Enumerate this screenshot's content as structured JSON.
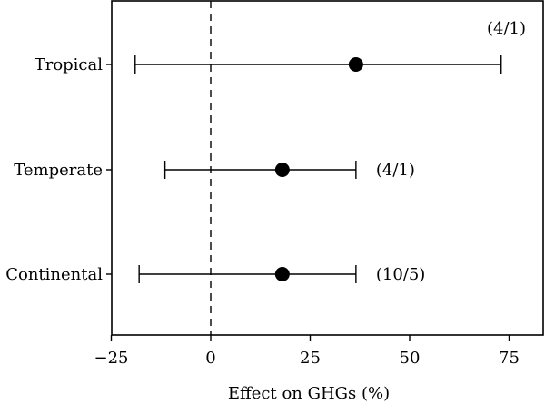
{
  "chart_data": {
    "type": "scatter",
    "subtype": "forest-plot",
    "title": "",
    "xlabel": "Effect on GHGs (%)",
    "ylabel": "",
    "xlim": [
      -25,
      80
    ],
    "xticks": [
      -25,
      0,
      25,
      50,
      75
    ],
    "xtick_labels": [
      "−25",
      "0",
      "25",
      "50",
      "75"
    ],
    "reference_line": {
      "x": 0,
      "style": "dashed"
    },
    "grid": false,
    "legend": "none",
    "marker_color": "#000000",
    "rows": [
      {
        "category": "Tropical",
        "estimate": 36.5,
        "ci_low": -19,
        "ci_high": 73,
        "annotation": "(4/1)",
        "annotation_position": "top-right"
      },
      {
        "category": "Temperate",
        "estimate": 18,
        "ci_low": -11.5,
        "ci_high": 36.5,
        "annotation": "(4/1)",
        "annotation_position": "right"
      },
      {
        "category": "Continental",
        "estimate": 18,
        "ci_low": -18,
        "ci_high": 36.5,
        "annotation": "(10/5)",
        "annotation_position": "right"
      }
    ]
  }
}
